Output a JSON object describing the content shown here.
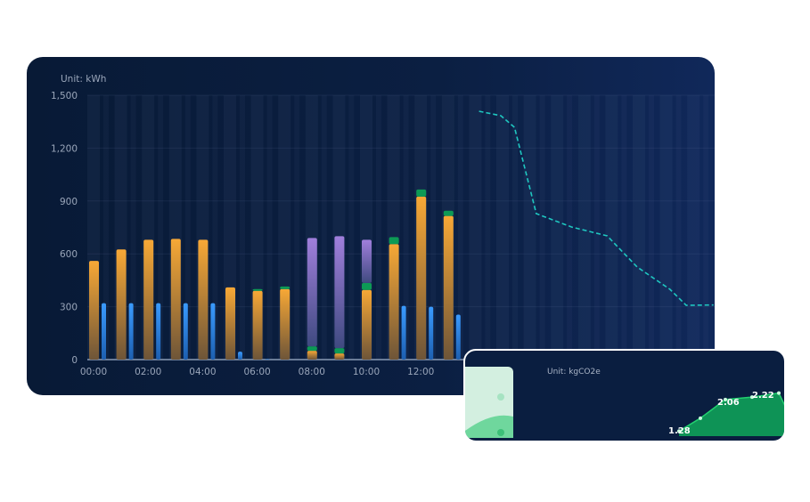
{
  "chart_data": {
    "type": "bar",
    "unit_label": "Unit: kWh",
    "ylim": [
      0,
      1500
    ],
    "yticks": [
      "0",
      "300",
      "600",
      "900",
      "1,200",
      "1,500"
    ],
    "categories": [
      "00:00",
      "01:00",
      "02:00",
      "03:00",
      "04:00",
      "05:00",
      "06:00",
      "07:00",
      "08:00",
      "09:00",
      "10:00",
      "11:00",
      "12:00",
      "13:00"
    ],
    "xtick_labels": [
      "00:00",
      "02:00",
      "04:00",
      "06:00",
      "08:00",
      "10:00",
      "12:00"
    ],
    "series": [
      {
        "color": "#f5a533",
        "values": [
          560,
          625,
          680,
          685,
          680,
          410,
          390,
          400,
          50,
          35,
          395,
          655,
          925,
          815
        ]
      },
      {
        "color": "#0d9a55",
        "values": [
          0,
          0,
          0,
          0,
          0,
          0,
          10,
          15,
          25,
          30,
          40,
          40,
          40,
          30
        ]
      },
      {
        "color": "#9a78d6",
        "values": [
          0,
          0,
          0,
          0,
          0,
          0,
          0,
          0,
          615,
          635,
          245,
          0,
          0,
          0
        ]
      },
      {
        "color": "#2f8ff0",
        "values": [
          320,
          320,
          320,
          320,
          320,
          45,
          3,
          0,
          0,
          0,
          0,
          305,
          300,
          255
        ]
      }
    ],
    "line": {
      "color": "#1fc7c0",
      "style": "dashed",
      "x_hours": [
        14.3,
        15.1,
        15.6,
        16.4,
        17.7,
        19.0,
        20.1,
        21.3,
        21.9,
        22.9
      ],
      "values": [
        1409,
        1384,
        1318,
        828,
        752,
        702,
        525,
        399,
        308,
        310
      ]
    },
    "grid": true
  },
  "inset": {
    "unit_label": "Unit: kgCO2e",
    "color": "#0fa85a",
    "points": [
      1.28,
      1.6,
      2.06,
      2.12,
      2.22,
      1.4
    ],
    "labels": [
      "1.28",
      "2.06",
      "2.22"
    ]
  }
}
